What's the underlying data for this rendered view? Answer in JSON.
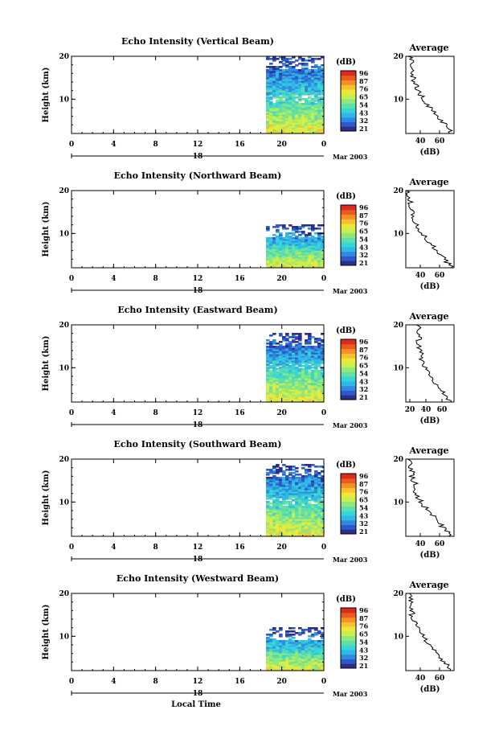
{
  "common": {
    "y_label": "Height (km)",
    "x_label": "Local Time",
    "date_label": "Mar 2003",
    "day_label": "18",
    "avg_title": "Average",
    "avg_xlabel": "(dB)",
    "cb_unit": "(dB)",
    "cb_ticks": [
      "96",
      "87",
      "76",
      "65",
      "54",
      "43",
      "32",
      "21"
    ],
    "colormap": [
      "#2a2f8f",
      "#2f58c8",
      "#2f8be0",
      "#2fb8e8",
      "#37d5d5",
      "#5fe0a8",
      "#8fe878",
      "#c8ee4f",
      "#eee83a",
      "#f7c02e",
      "#f58f26",
      "#ec5a20",
      "#d92b1e"
    ]
  },
  "chart_data": [
    {
      "type": "heatmap",
      "title": "Echo Intensity (Vertical Beam)",
      "x_ticks": [
        "0",
        "4",
        "8",
        "12",
        "16",
        "20",
        "0"
      ],
      "x_range": [
        0,
        24
      ],
      "y_ticks": [
        "20",
        "10"
      ],
      "y_range": [
        2,
        20
      ],
      "data_start_hour": 18.5,
      "top_km": 20,
      "colorbar": {
        "min": 21,
        "max": 96
      },
      "average": {
        "x_ticks": [
          "40",
          "60"
        ],
        "x_range": [
          25,
          75
        ],
        "y_ticks": [
          "20",
          "10"
        ],
        "profile": [
          [
            72,
            2
          ],
          [
            70,
            3
          ],
          [
            66,
            4
          ],
          [
            62,
            5
          ],
          [
            58,
            6
          ],
          [
            54,
            7
          ],
          [
            50,
            8
          ],
          [
            46,
            9
          ],
          [
            44,
            10
          ],
          [
            40,
            11
          ],
          [
            38,
            12
          ],
          [
            36,
            13
          ],
          [
            34,
            14
          ],
          [
            33,
            15
          ],
          [
            31,
            16
          ],
          [
            32,
            17
          ],
          [
            30,
            18
          ],
          [
            31,
            19
          ],
          [
            30,
            20
          ]
        ]
      }
    },
    {
      "type": "heatmap",
      "title": "Echo Intensity (Northward Beam)",
      "x_ticks": [
        "0",
        "4",
        "8",
        "12",
        "16",
        "20",
        "0"
      ],
      "x_range": [
        0,
        24
      ],
      "y_ticks": [
        "20",
        "10"
      ],
      "y_range": [
        2,
        20
      ],
      "data_start_hour": 18.5,
      "top_km": 12,
      "colorbar": {
        "min": 21,
        "max": 96
      },
      "average": {
        "x_ticks": [
          "40",
          "60"
        ],
        "x_range": [
          25,
          75
        ],
        "y_ticks": [
          "20",
          "10"
        ],
        "profile": [
          [
            72,
            2
          ],
          [
            69,
            3
          ],
          [
            65,
            4
          ],
          [
            61,
            5
          ],
          [
            57,
            6
          ],
          [
            53,
            7
          ],
          [
            49,
            8
          ],
          [
            45,
            9
          ],
          [
            42,
            10
          ],
          [
            39,
            11
          ],
          [
            36,
            12
          ],
          [
            34,
            13
          ],
          [
            32,
            14
          ],
          [
            31,
            15
          ],
          [
            30,
            16
          ],
          [
            29,
            17
          ],
          [
            30,
            18
          ],
          [
            28,
            19
          ],
          [
            27,
            20
          ]
        ]
      }
    },
    {
      "type": "heatmap",
      "title": "Echo Intensity (Eastward Beam)",
      "x_ticks": [
        "0",
        "4",
        "8",
        "12",
        "16",
        "20",
        "0"
      ],
      "x_range": [
        0,
        24
      ],
      "y_ticks": [
        "20",
        "10"
      ],
      "y_range": [
        2,
        20
      ],
      "data_start_hour": 18.5,
      "top_km": 18,
      "colorbar": {
        "min": 21,
        "max": 96
      },
      "average": {
        "x_ticks": [
          "20",
          "40",
          "60"
        ],
        "x_range": [
          15,
          75
        ],
        "y_ticks": [
          "20",
          "10"
        ],
        "profile": [
          [
            70,
            2
          ],
          [
            67,
            3
          ],
          [
            62,
            4
          ],
          [
            58,
            5
          ],
          [
            54,
            6
          ],
          [
            50,
            7
          ],
          [
            46,
            8
          ],
          [
            43,
            9
          ],
          [
            40,
            10
          ],
          [
            36,
            11
          ],
          [
            34,
            12
          ],
          [
            36,
            13
          ],
          [
            33,
            14
          ],
          [
            31,
            15
          ],
          [
            30,
            16
          ],
          [
            32,
            17
          ],
          [
            29,
            18
          ],
          [
            31,
            19
          ],
          [
            30,
            20
          ]
        ]
      }
    },
    {
      "type": "heatmap",
      "title": "Echo Intensity (Southward Beam)",
      "x_ticks": [
        "0",
        "4",
        "8",
        "12",
        "16",
        "20",
        "0"
      ],
      "x_range": [
        0,
        24
      ],
      "y_ticks": [
        "20",
        "10"
      ],
      "y_range": [
        2,
        20
      ],
      "data_start_hour": 18.5,
      "top_km": 19,
      "colorbar": {
        "min": 21,
        "max": 96
      },
      "average": {
        "x_ticks": [
          "40",
          "60"
        ],
        "x_range": [
          25,
          75
        ],
        "y_ticks": [
          "20",
          "10"
        ],
        "profile": [
          [
            72,
            2
          ],
          [
            68,
            3
          ],
          [
            64,
            4
          ],
          [
            60,
            5
          ],
          [
            56,
            6
          ],
          [
            52,
            7
          ],
          [
            48,
            8
          ],
          [
            44,
            9
          ],
          [
            41,
            10
          ],
          [
            38,
            11
          ],
          [
            36,
            12
          ],
          [
            34,
            13
          ],
          [
            36,
            14
          ],
          [
            33,
            15
          ],
          [
            31,
            16
          ],
          [
            33,
            17
          ],
          [
            30,
            18
          ],
          [
            29,
            19
          ],
          [
            28,
            20
          ]
        ]
      }
    },
    {
      "type": "heatmap",
      "title": "Echo Intensity (Westward Beam)",
      "x_ticks": [
        "0",
        "4",
        "8",
        "12",
        "16",
        "20",
        "0"
      ],
      "x_range": [
        0,
        24
      ],
      "y_ticks": [
        "20",
        "10"
      ],
      "y_range": [
        2,
        20
      ],
      "data_start_hour": 18.5,
      "top_km": 12,
      "colorbar": {
        "min": 21,
        "max": 96
      },
      "average": {
        "x_ticks": [
          "40",
          "60"
        ],
        "x_range": [
          25,
          75
        ],
        "y_ticks": [
          "20",
          "10"
        ],
        "profile": [
          [
            72,
            2
          ],
          [
            69,
            3
          ],
          [
            65,
            4
          ],
          [
            61,
            5
          ],
          [
            57,
            6
          ],
          [
            53,
            7
          ],
          [
            49,
            8
          ],
          [
            45,
            9
          ],
          [
            43,
            10
          ],
          [
            40,
            11
          ],
          [
            38,
            12
          ],
          [
            35,
            13
          ],
          [
            33,
            14
          ],
          [
            31,
            15
          ],
          [
            32,
            16
          ],
          [
            30,
            17
          ],
          [
            31,
            18
          ],
          [
            30,
            19
          ],
          [
            29,
            20
          ]
        ]
      }
    }
  ]
}
